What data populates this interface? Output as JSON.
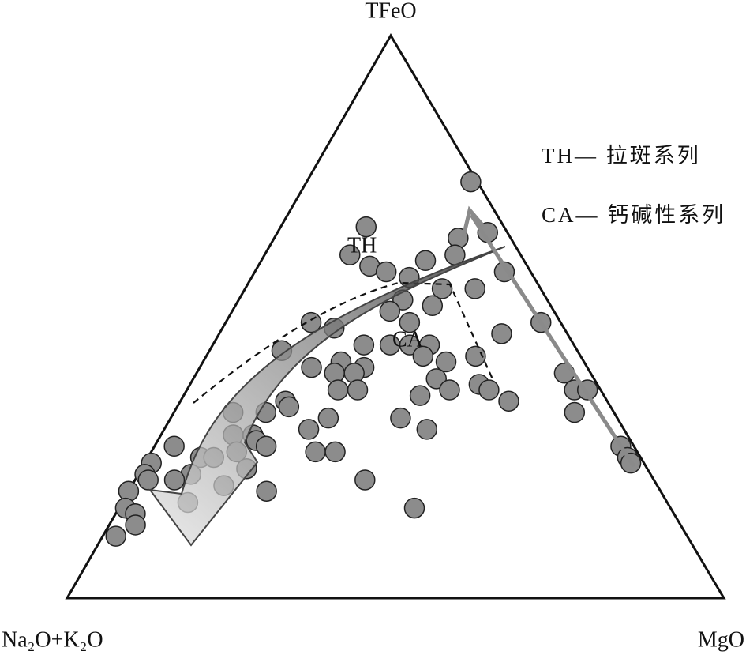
{
  "chart_data": {
    "type": "ternary",
    "vertices": {
      "top": "TFeO",
      "left": "Na₂O+K₂O",
      "right": "MgO"
    },
    "field_labels": [
      "TH",
      "CA"
    ],
    "legend": [
      "TH— 拉斑系列",
      "CA— 钙碱性系列"
    ],
    "color": "#8c8c8c",
    "tfeo": [
      74,
      66,
      64,
      65,
      61,
      59,
      61,
      60,
      58,
      57,
      55,
      55,
      58,
      53,
      52,
      51,
      49,
      48,
      49,
      49,
      47,
      45,
      45,
      44,
      45,
      45,
      43,
      41,
      42,
      41,
      42,
      43,
      40,
      40,
      40,
      39,
      38,
      37,
      37,
      37,
      37,
      37,
      37,
      35,
      34,
      36,
      35,
      33,
      33,
      32,
      32,
      30,
      33,
      30,
      29,
      29,
      28,
      27,
      27,
      27,
      25,
      26,
      26,
      26,
      24,
      25,
      25,
      23,
      22,
      22,
      21,
      21,
      24,
      21,
      20,
      19,
      19,
      17,
      16,
      16,
      15,
      13,
      11
    ],
    "mgo": [
      25,
      13,
      28,
      32,
      13,
      17,
      29,
      25,
      20,
      24,
      30,
      35,
      38,
      25,
      30,
      24,
      13,
      17,
      28,
      48,
      43,
      23,
      27,
      11,
      30,
      33,
      41,
      17,
      21,
      25,
      37,
      33,
      21,
      24,
      56,
      37,
      44,
      46,
      23,
      26,
      40,
      59,
      61,
      16,
      17,
      36,
      50,
      9,
      14,
      24,
      35,
      22,
      61,
      40,
      11,
      14,
      15,
      3,
      17,
      71,
      73,
      13,
      25,
      28,
      1,
      8,
      10,
      16,
      8,
      1,
      2,
      6,
      74,
      35,
      14,
      21,
      0,
      10,
      1,
      45,
      3,
      4,
      2
    ],
    "alk": [
      1,
      21,
      8,
      3,
      26,
      24,
      10,
      15,
      22,
      19,
      15,
      10,
      4,
      22,
      18,
      25,
      38,
      35,
      23,
      3,
      10,
      32,
      28,
      45,
      25,
      22,
      16,
      42,
      37,
      34,
      21,
      24,
      39,
      36,
      4,
      24,
      18,
      17,
      40,
      37,
      23,
      4,
      2,
      49,
      49,
      28,
      15,
      58,
      53,
      44,
      33,
      48,
      6,
      30,
      60,
      57,
      57,
      70,
      56,
      2,
      2,
      61,
      49,
      46,
      75,
      67,
      65,
      61,
      70,
      77,
      77,
      73,
      2,
      44,
      66,
      60,
      81,
      73,
      83,
      39,
      82,
      83,
      87
    ]
  }
}
